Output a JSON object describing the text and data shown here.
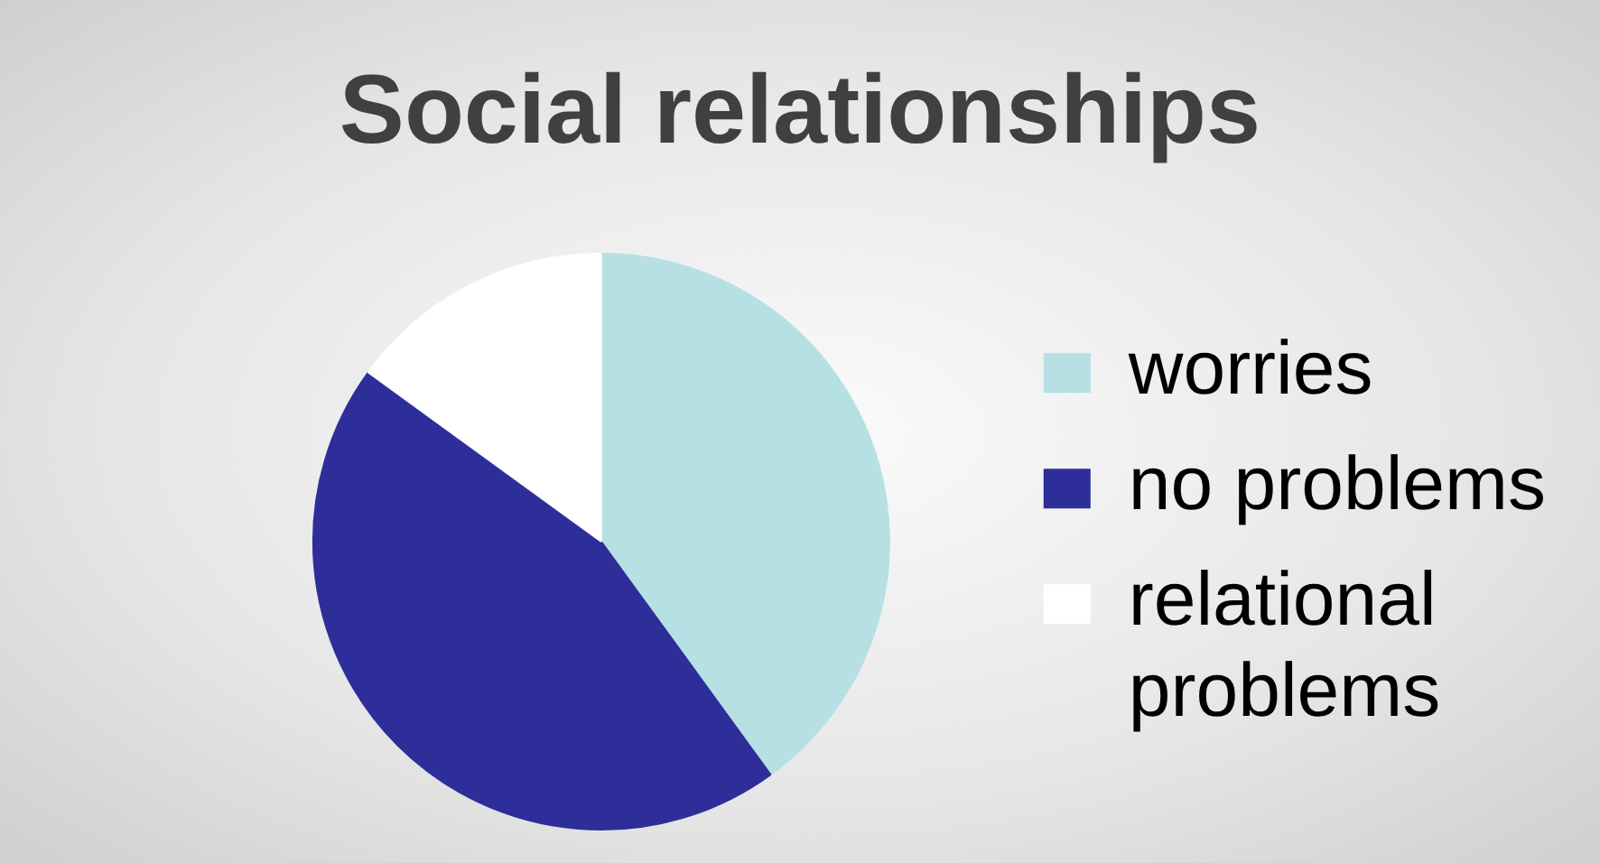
{
  "chart_data": {
    "type": "pie",
    "title": "Social relationships",
    "categories": [
      "worries",
      "no problems",
      "relational problems"
    ],
    "values": [
      40,
      45,
      15
    ],
    "colors": [
      "#b7e0e4",
      "#2e2e9a",
      "#ffffff"
    ],
    "legend": "right"
  }
}
